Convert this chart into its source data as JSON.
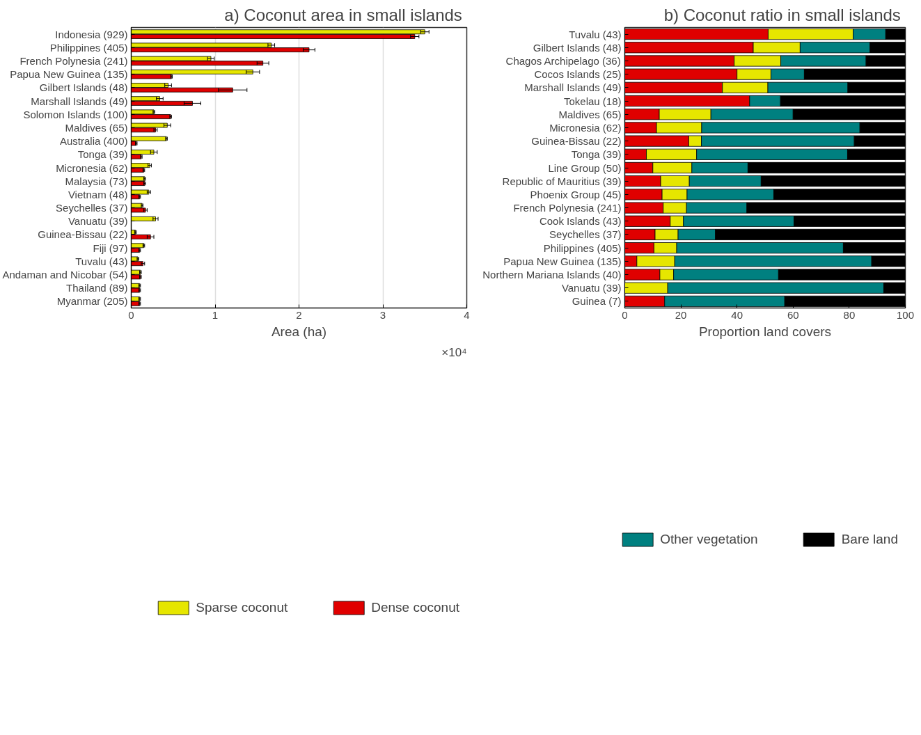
{
  "chart_data": [
    {
      "type": "bar",
      "orientation": "horizontal",
      "title": "a)  Coconut area in small islands",
      "xlabel": "Area (ha)",
      "annotations": [
        "×10⁴"
      ],
      "categories": [
        "Indonesia (929)",
        "Philippines (405)",
        "French Polynesia (241)",
        "Papua New Guinea (135)",
        "Gilbert Islands (48)",
        "Marshall Islands (49)",
        "Solomon Islands (100)",
        "Maldives (65)",
        "Australia (400)",
        "Tonga (39)",
        "Micronesia (62)",
        "Malaysia (73)",
        "Vietnam (48)",
        "Seychelles (37)",
        "Vanuatu (39)",
        "Guinea-Bissau (22)",
        "Fiji (97)",
        "Tuvalu (43)",
        "Andaman and Nicobar (54)",
        "Thailand (89)",
        "Myanmar (205)"
      ],
      "series": [
        {
          "name": "Sparse coconut",
          "color": "#e6e600",
          "values": [
            3.5,
            1.67,
            0.95,
            1.45,
            0.44,
            0.34,
            0.27,
            0.43,
            0.42,
            0.27,
            0.22,
            0.16,
            0.21,
            0.13,
            0.29,
            0.05,
            0.15,
            0.08,
            0.11,
            0.1,
            0.1
          ],
          "errors": [
            0.05,
            0.04,
            0.04,
            0.08,
            0.04,
            0.04,
            0.01,
            0.04,
            0.01,
            0.04,
            0.02,
            0.01,
            0.02,
            0.01,
            0.03,
            0.01,
            0.01,
            0.01,
            0.01,
            0.01,
            0.01
          ]
        },
        {
          "name": "Dense coconut",
          "color": "#e00000",
          "values": [
            3.38,
            2.12,
            1.57,
            0.48,
            1.21,
            0.73,
            0.47,
            0.29,
            0.06,
            0.12,
            0.15,
            0.16,
            0.1,
            0.17,
            0,
            0.23,
            0.1,
            0.14,
            0.11,
            0.1,
            0.1
          ],
          "errors": [
            0.05,
            0.07,
            0.07,
            0.01,
            0.17,
            0.1,
            0.01,
            0.02,
            0.01,
            0.01,
            0.01,
            0.01,
            0.01,
            0.02,
            null,
            0.04,
            0.01,
            0.02,
            0.01,
            0.01,
            0.01
          ]
        }
      ],
      "xlim": [
        0,
        4
      ],
      "xticks": [
        0,
        1,
        2,
        3,
        4
      ],
      "grid": "x",
      "legend": "bottom"
    },
    {
      "type": "bar",
      "orientation": "horizontal",
      "stacked": true,
      "title": "b)  Coconut ratio in small islands",
      "xlabel": "Proportion land covers",
      "categories": [
        "Tuvalu (43)",
        "Gilbert Islands (48)",
        "Chagos Archipelago (36)",
        "Cocos Islands (25)",
        "Marshall Islands (49)",
        "Tokelau (18)",
        "Maldives (65)",
        "Micronesia (62)",
        "Guinea-Bissau (22)",
        "Tonga (39)",
        "Line Group (50)",
        "Republic of Mauritius (39)",
        "Phoenix Group (45)",
        "French Polynesia (241)",
        "Cook Islands (43)",
        "Seychelles (37)",
        "Philippines (405)",
        "Papua New Guinea (135)",
        "Northern Mariana Islands (40)",
        "Vanuatu (39)",
        "Guinea (7)"
      ],
      "series": [
        {
          "color": "#e00000",
          "values": [
            51.1,
            45.8,
            39.0,
            40.0,
            34.8,
            44.5,
            12.3,
            11.3,
            22.8,
            7.7,
            10.0,
            12.8,
            13.3,
            13.7,
            16.2,
            10.8,
            10.4,
            4.3,
            12.5,
            0,
            14.2
          ]
        },
        {
          "color": "#e6e600",
          "values": [
            30.3,
            16.7,
            16.6,
            12.1,
            16.2,
            0,
            18.4,
            16.1,
            4.5,
            17.9,
            13.9,
            10.2,
            8.9,
            8.3,
            4.7,
            8.2,
            8.1,
            13.5,
            4.9,
            15.3,
            0
          ]
        },
        {
          "name": "Other vegetation",
          "color": "#008080",
          "values": [
            11.6,
            24.9,
            30.4,
            11.9,
            28.5,
            11.0,
            29.3,
            56.4,
            54.5,
            53.8,
            20.0,
            25.6,
            30.9,
            21.5,
            39.4,
            13.3,
            59.4,
            70.2,
            37.4,
            77.0,
            42.8
          ]
        },
        {
          "name": "Bare land",
          "color": "#000000",
          "values": [
            7.0,
            12.6,
            14.0,
            36.0,
            20.5,
            44.5,
            40.0,
            16.2,
            18.2,
            20.6,
            56.1,
            51.4,
            46.9,
            56.5,
            39.7,
            67.7,
            22.1,
            12.0,
            45.2,
            7.7,
            43.0
          ]
        }
      ],
      "xlim": [
        0,
        100
      ],
      "xticks": [
        0,
        20,
        40,
        60,
        80,
        100
      ],
      "legend": "bottom"
    }
  ]
}
